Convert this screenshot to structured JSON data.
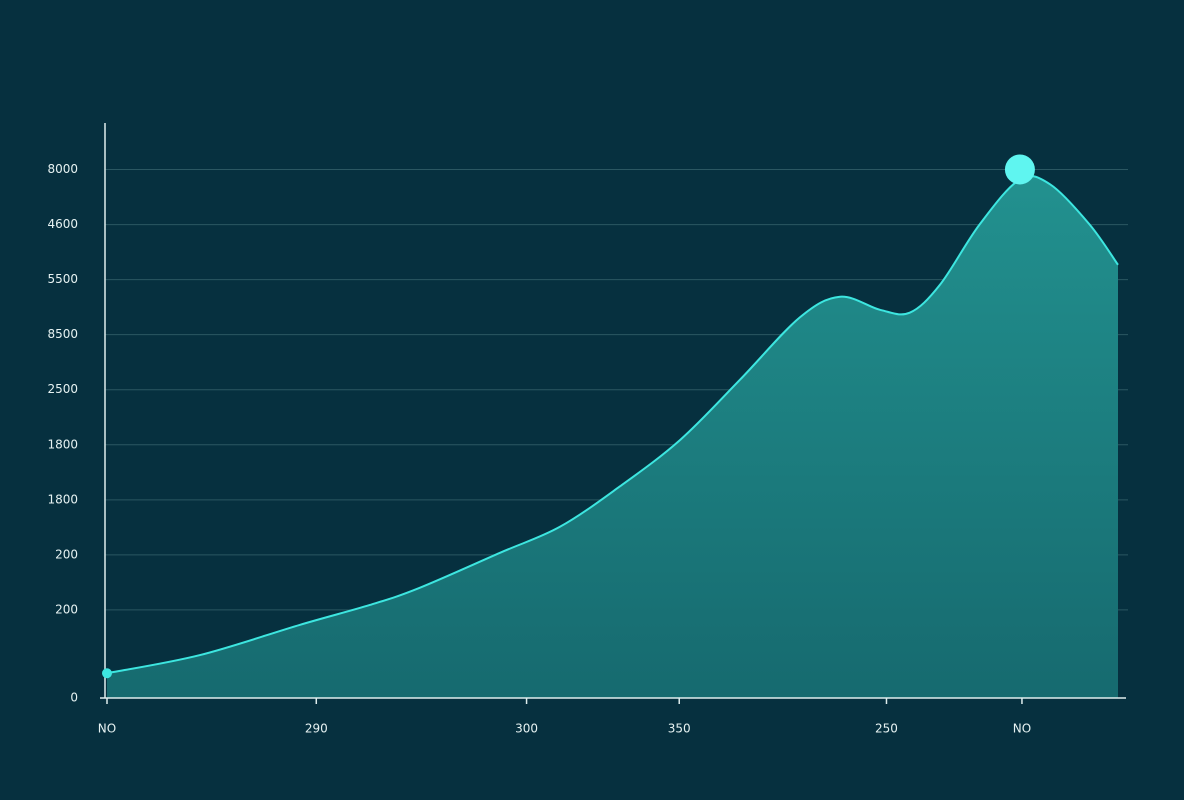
{
  "chart_data": {
    "type": "area",
    "x": [
      0,
      9.2,
      19.1,
      26.0,
      30.9,
      38.9,
      44.8,
      50.7,
      56.7,
      62.6,
      68.5,
      72.5,
      76.5,
      79.4,
      82.4,
      86.3,
      90.3,
      93.3,
      97.2,
      100
    ],
    "values": [
      0.45,
      0.78,
      1.33,
      1.69,
      2.0,
      2.64,
      3.11,
      3.84,
      4.69,
      5.78,
      6.91,
      7.29,
      7.05,
      7.0,
      7.51,
      8.6,
      9.42,
      9.33,
      8.6,
      7.87
    ],
    "color": "#3de6e0",
    "xlim": [
      0,
      100
    ],
    "xticks": [
      {
        "value": 0,
        "label": "NO"
      },
      {
        "value": 20.7,
        "label": "290"
      },
      {
        "value": 41.5,
        "label": "300"
      },
      {
        "value": 56.6,
        "label": "350"
      },
      {
        "value": 77.1,
        "label": "250"
      },
      {
        "value": 90.5,
        "label": "NO"
      }
    ],
    "ylim": [
      0,
      10.5
    ],
    "yticks": [
      0,
      {
        "value": 1.6,
        "label": "200"
      },
      {
        "value": 2.6,
        "label": "200"
      },
      {
        "value": 3.6,
        "label": "1800"
      },
      {
        "value": 4.6,
        "label": "1800"
      },
      {
        "value": 5.6,
        "label": "2500"
      },
      {
        "value": 6.6,
        "label": "8500"
      },
      {
        "value": 7.6,
        "label": "5500"
      },
      {
        "value": 8.6,
        "label": "4600"
      },
      {
        "value": 9.6,
        "label": "8000"
      }
    ],
    "grid": true
  }
}
